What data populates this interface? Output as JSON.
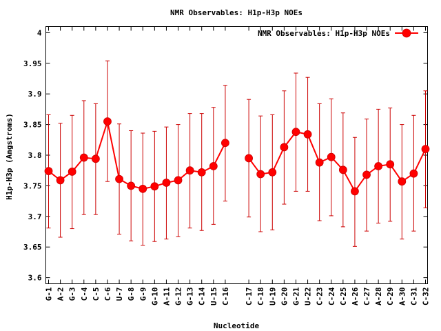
{
  "chart_data": {
    "type": "line",
    "title": "NMR Observables: H1p-H3p NOEs",
    "xlabel": "Nucleotide",
    "ylabel": "H1p-H3p (Angstroms)",
    "ylim": [
      3.59,
      4.01
    ],
    "yticks": [
      {
        "value": 3.6,
        "label": "3.6"
      },
      {
        "value": 3.65,
        "label": "3.65"
      },
      {
        "value": 3.7,
        "label": "3.7"
      },
      {
        "value": 3.75,
        "label": "3.75"
      },
      {
        "value": 3.8,
        "label": "3.8"
      },
      {
        "value": 3.85,
        "label": "3.85"
      },
      {
        "value": 3.9,
        "label": "3.9"
      },
      {
        "value": 3.95,
        "label": "3.95"
      },
      {
        "value": 4.0,
        "label": "4"
      }
    ],
    "grid": false,
    "legend_position": "top-right",
    "series_color": "#ff0000",
    "error_color": "#cc0000",
    "series": [
      {
        "name": "NMR Observables: H1p-H3p NOEs",
        "segments": [
          {
            "categories": [
              "G-1",
              "A-2",
              "G-3",
              "C-4",
              "C-5",
              "C-6",
              "U-7",
              "G-8",
              "G-9",
              "G-10",
              "A-11",
              "G-12",
              "G-13",
              "C-14",
              "U-15",
              "C-16"
            ],
            "values": [
              3.774,
              3.759,
              3.773,
              3.796,
              3.794,
              3.855,
              3.761,
              3.75,
              3.745,
              3.749,
              3.755,
              3.759,
              3.775,
              3.772,
              3.782,
              3.82
            ],
            "err_low": [
              3.681,
              3.666,
              3.68,
              3.703,
              3.703,
              3.757,
              3.671,
              3.66,
              3.653,
              3.659,
              3.663,
              3.667,
              3.681,
              3.677,
              3.687,
              3.725
            ],
            "err_high": [
              3.866,
              3.852,
              3.865,
              3.889,
              3.884,
              3.954,
              3.851,
              3.84,
              3.836,
              3.839,
              3.846,
              3.85,
              3.868,
              3.868,
              3.878,
              3.914
            ]
          },
          {
            "categories": [
              "C-17",
              "C-18",
              "U-19",
              "G-20",
              "G-21",
              "U-22",
              "C-23",
              "C-24",
              "C-25",
              "A-26",
              "C-27",
              "A-28",
              "C-29",
              "A-30",
              "C-31",
              "C-32"
            ],
            "values": [
              3.795,
              3.769,
              3.772,
              3.813,
              3.838,
              3.834,
              3.788,
              3.797,
              3.776,
              3.741,
              3.768,
              3.782,
              3.785,
              3.757,
              3.77,
              3.81
            ],
            "err_low": [
              3.699,
              3.675,
              3.678,
              3.72,
              3.741,
              3.741,
              3.693,
              3.701,
              3.683,
              3.651,
              3.676,
              3.689,
              3.692,
              3.663,
              3.676,
              3.714
            ],
            "err_high": [
              3.891,
              3.864,
              3.866,
              3.905,
              3.934,
              3.927,
              3.884,
              3.892,
              3.869,
              3.829,
              3.859,
              3.875,
              3.877,
              3.85,
              3.865,
              3.905
            ]
          }
        ]
      }
    ]
  }
}
